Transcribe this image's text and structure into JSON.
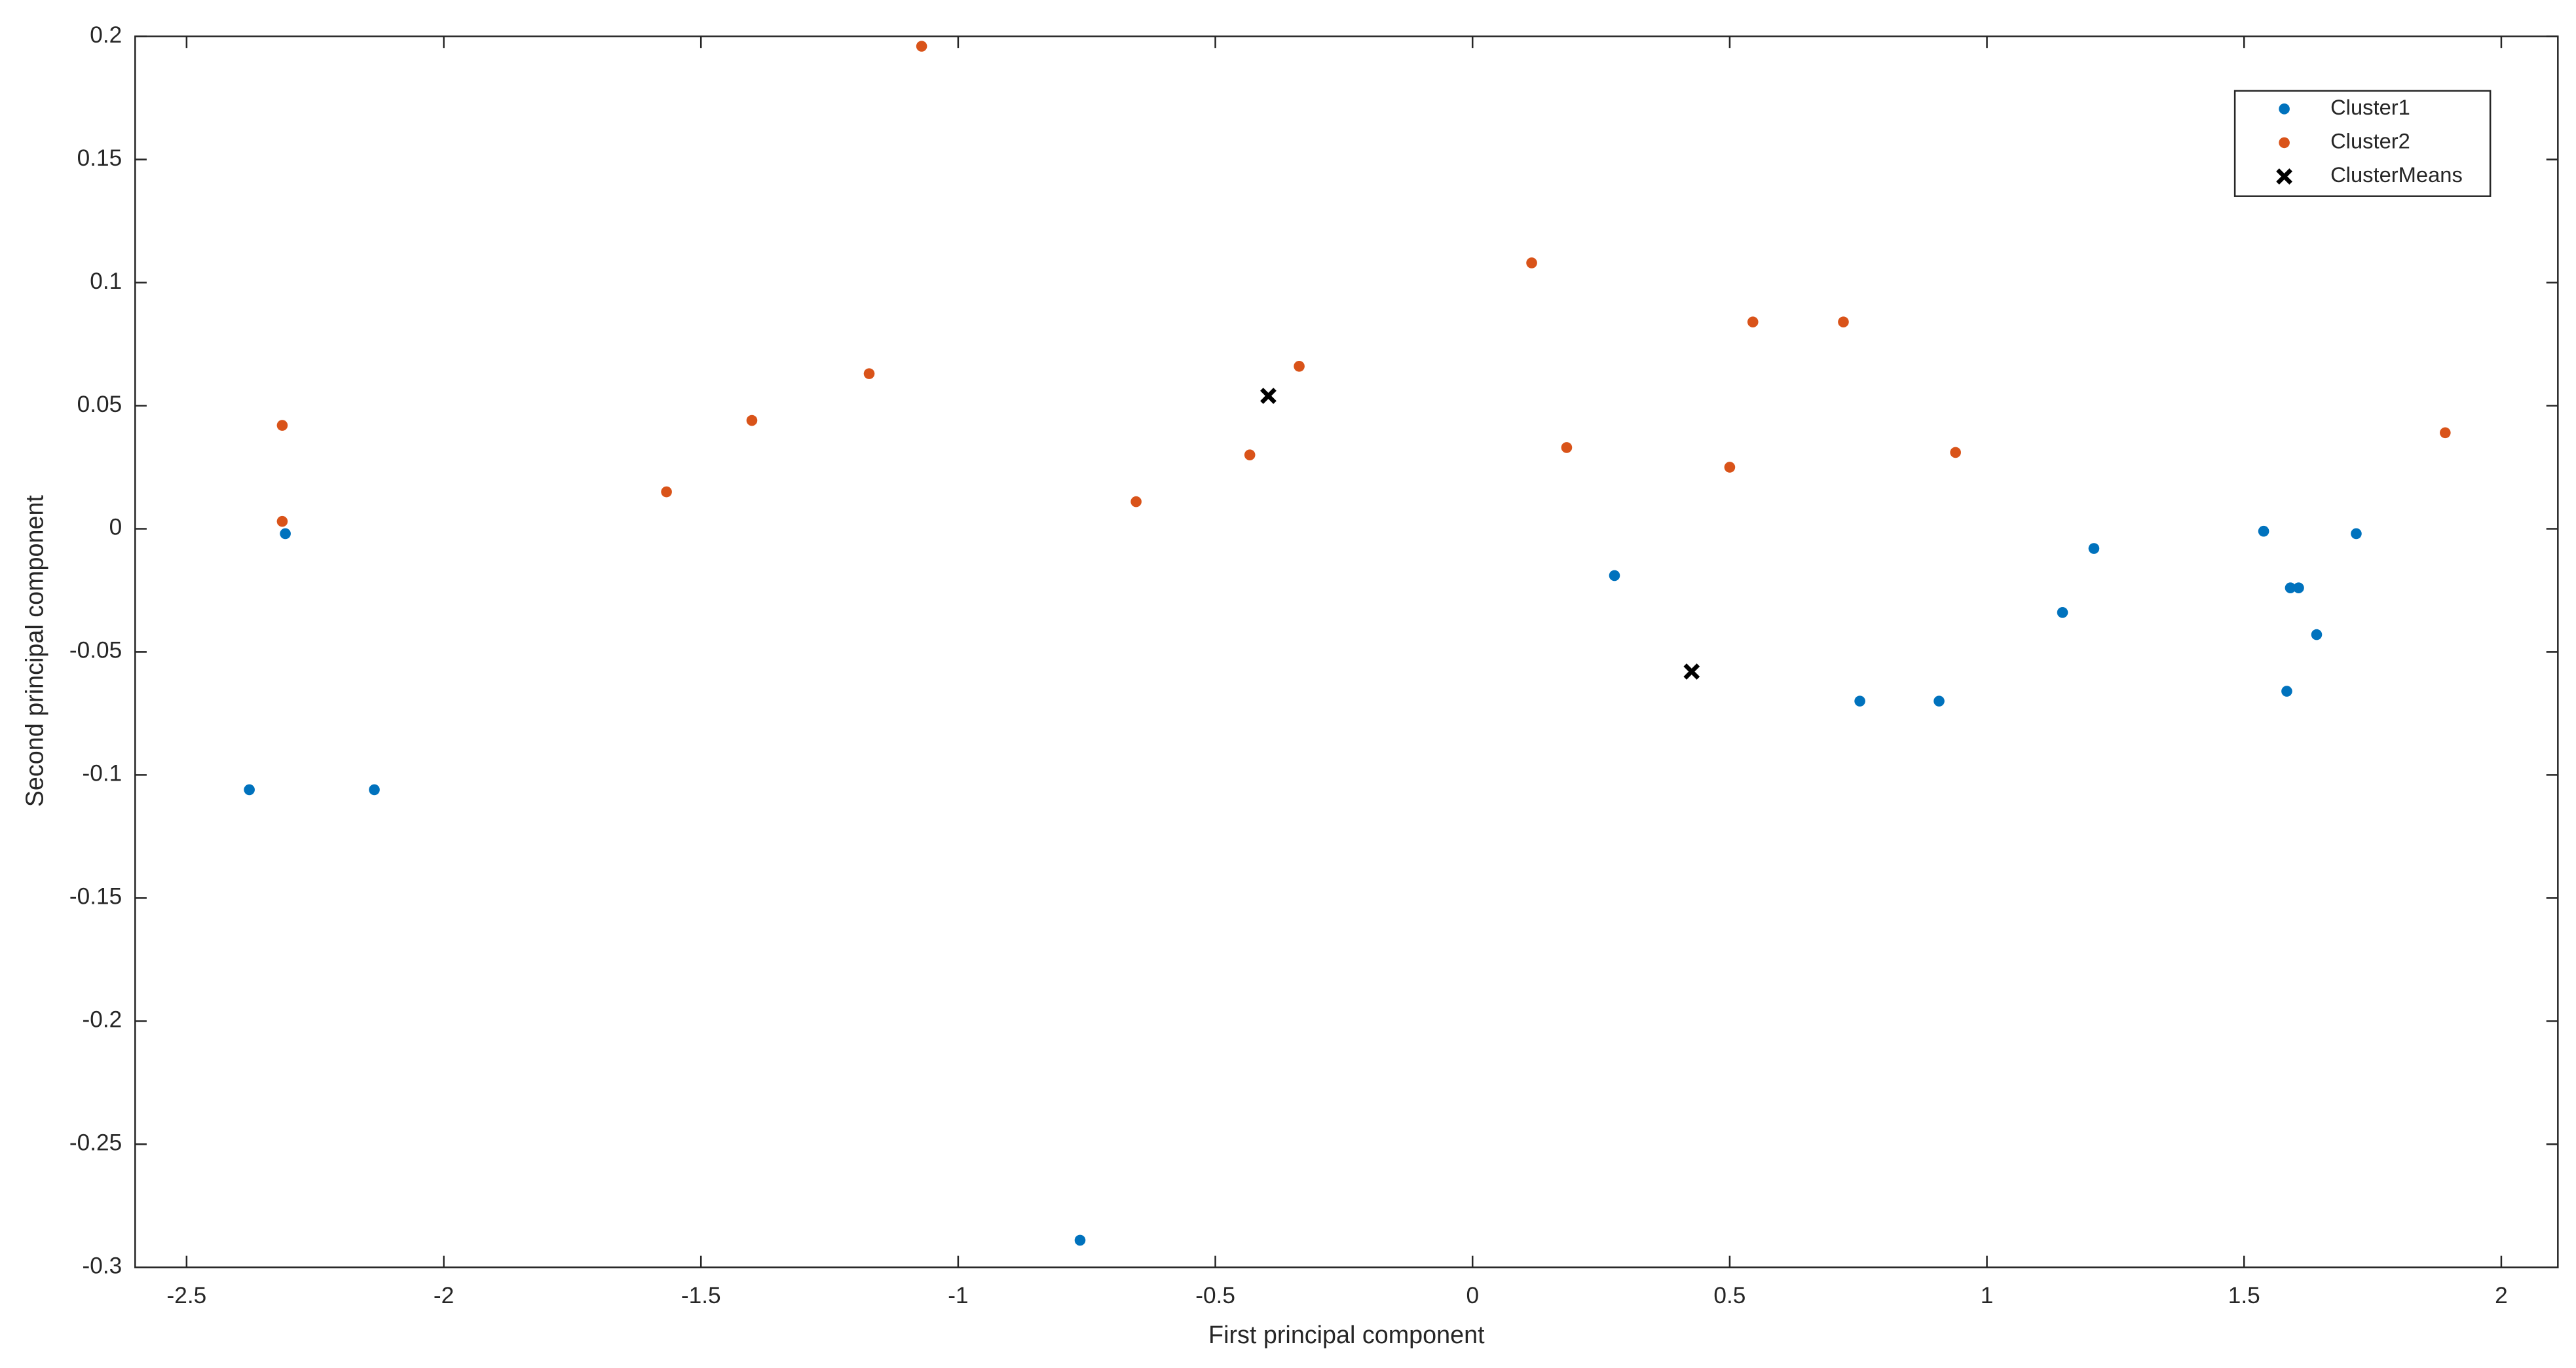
{
  "chart_data": {
    "type": "scatter",
    "x_label": "First principal component",
    "y_label": "Second principal component",
    "xlim": [
      -2.6,
      2.11
    ],
    "ylim": [
      -0.3,
      0.2
    ],
    "xticks": [
      -2.5,
      -2,
      -1.5,
      -1,
      -0.5,
      0,
      0.5,
      1,
      1.5,
      2
    ],
    "yticks": [
      -0.3,
      -0.25,
      -0.2,
      -0.15,
      -0.1,
      -0.05,
      0,
      0.05,
      0.1,
      0.15,
      0.2
    ],
    "legend": "upper right",
    "series": [
      {
        "name": "Cluster1",
        "color": "#0072bd",
        "marker": "dot",
        "x": [
          -2.378,
          -2.308,
          -2.135,
          -0.763,
          0.276,
          0.753,
          0.907,
          1.147,
          1.208,
          1.538,
          1.59,
          1.606,
          1.583,
          1.641,
          1.718
        ],
        "values": [
          -0.106,
          -0.002,
          -0.106,
          -0.289,
          -0.019,
          -0.07,
          -0.07,
          -0.034,
          -0.008,
          -0.001,
          -0.024,
          -0.024,
          -0.066,
          -0.043,
          -0.002
        ]
      },
      {
        "name": "Cluster2",
        "color": "#d95319",
        "marker": "dot",
        "x": [
          -2.314,
          -2.314,
          -1.567,
          -1.401,
          -1.173,
          -1.071,
          -0.654,
          -0.433,
          -0.337,
          0.115,
          0.183,
          0.5,
          0.545,
          0.721,
          0.939,
          1.891
        ],
        "values": [
          0.042,
          0.003,
          0.015,
          0.044,
          0.063,
          0.196,
          0.011,
          0.03,
          0.066,
          0.108,
          0.033,
          0.025,
          0.084,
          0.084,
          0.031,
          0.039
        ]
      },
      {
        "name": "ClusterMeans",
        "color": "#000000",
        "marker": "x",
        "x": [
          -0.397,
          0.426
        ],
        "values": [
          0.054,
          -0.058
        ]
      }
    ]
  }
}
